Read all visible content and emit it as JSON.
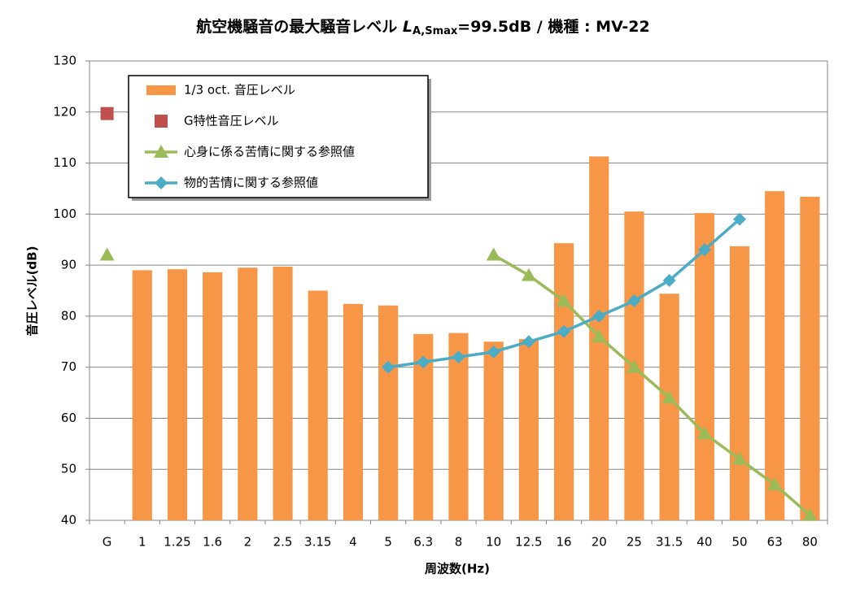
{
  "chart_data": {
    "type": "bar",
    "title": [
      "航空機騒音の最大騒音レベル ",
      "L",
      "A,Smax",
      "=99.5dB / 機種 : MV-22"
    ],
    "x_label": "周波数(Hz)",
    "y_label": "音圧レベル(dB)",
    "categories": [
      "G",
      "1",
      "1.25",
      "1.6",
      "2",
      "2.5",
      "3.15",
      "4",
      "5",
      "6.3",
      "8",
      "10",
      "12.5",
      "16",
      "20",
      "25",
      "31.5",
      "40",
      "50",
      "63",
      "80"
    ],
    "ylim": [
      40,
      130
    ],
    "yticks": [
      40,
      50,
      60,
      70,
      80,
      90,
      100,
      110,
      120,
      130
    ],
    "grid": true,
    "legend": "upper left",
    "series": [
      {
        "name": "1/3 oct. 音圧レベル",
        "type": "bar",
        "color": "#F79646",
        "values": [
          null,
          89,
          89.2,
          88.6,
          89.5,
          89.7,
          85,
          82.4,
          82.1,
          76.5,
          76.7,
          75,
          75.5,
          94.3,
          111.3,
          100.5,
          84.4,
          100.2,
          93.7,
          104.5,
          103.4
        ]
      },
      {
        "name": "G特性音圧レベル",
        "type": "scatter",
        "marker": "square",
        "color": "#C0504D",
        "values": [
          119.7,
          null,
          null,
          null,
          null,
          null,
          null,
          null,
          null,
          null,
          null,
          null,
          null,
          null,
          null,
          null,
          null,
          null,
          null,
          null,
          null
        ]
      },
      {
        "name": "心身に係る苦情に関する参照値",
        "type": "line",
        "marker": "triangle",
        "color": "#9BBB59",
        "values": [
          92,
          null,
          null,
          null,
          null,
          null,
          null,
          null,
          null,
          null,
          null,
          92,
          88,
          83,
          76,
          70,
          64,
          57,
          52,
          47,
          41
        ]
      },
      {
        "name": "物的苦情に関する参照値",
        "type": "line",
        "marker": "diamond",
        "color": "#4BACC6",
        "values": [
          null,
          null,
          null,
          null,
          null,
          null,
          null,
          null,
          70,
          71,
          72,
          73,
          75,
          77,
          80,
          83,
          87,
          93,
          99,
          null,
          null
        ]
      }
    ]
  }
}
